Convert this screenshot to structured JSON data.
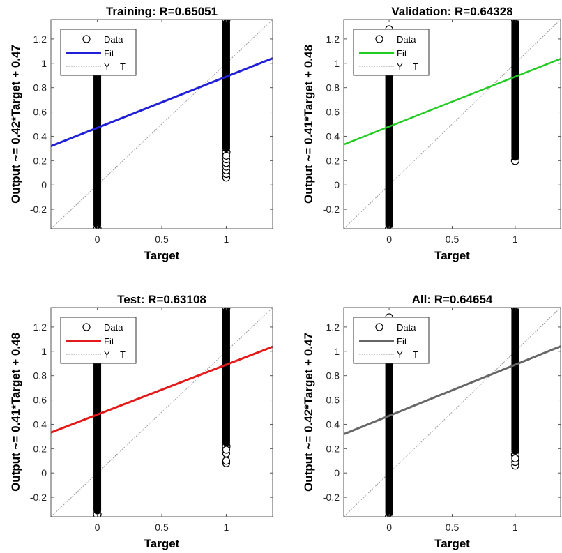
{
  "chart_data": [
    {
      "type": "scatter",
      "title": "Training: R=0.65051",
      "xlabel": "Target",
      "ylabel": "Output ~= 0.42*Target + 0.47",
      "xlim": [
        -0.36,
        1.36
      ],
      "ylim": [
        -0.36,
        1.36
      ],
      "xticks": [
        0,
        0.5,
        1
      ],
      "yticks": [
        -0.2,
        0,
        0.2,
        0.4,
        0.6,
        0.8,
        1,
        1.2
      ],
      "grid": false,
      "legend_position": "top-left",
      "legend": [
        "Data",
        "Fit",
        "Y = T"
      ],
      "fit_color": "#1f1fd6",
      "fit": {
        "slope": 0.42,
        "intercept": 0.47
      },
      "data_columns": [
        {
          "x": 0,
          "y_range": [
            -0.36,
            0.98
          ],
          "outliers": []
        },
        {
          "x": 1,
          "y_range": [
            0.27,
            1.36
          ],
          "outliers": [
            0.06,
            0.09,
            0.12,
            0.15,
            0.18,
            0.21,
            0.24
          ]
        }
      ]
    },
    {
      "type": "scatter",
      "title": "Validation: R=0.64328",
      "xlabel": "Target",
      "ylabel": "Output ~= 0.41*Target + 0.48",
      "xlim": [
        -0.36,
        1.36
      ],
      "ylim": [
        -0.36,
        1.36
      ],
      "xticks": [
        0,
        0.5,
        1
      ],
      "yticks": [
        -0.2,
        0,
        0.2,
        0.4,
        0.6,
        0.8,
        1,
        1.2
      ],
      "grid": false,
      "legend_position": "top-left",
      "legend": [
        "Data",
        "Fit",
        "Y = T"
      ],
      "fit_color": "#22cc22",
      "fit": {
        "slope": 0.41,
        "intercept": 0.48
      },
      "data_columns": [
        {
          "x": 0,
          "y_range": [
            -0.36,
            1.0
          ],
          "outliers": [
            1.28
          ]
        },
        {
          "x": 1,
          "y_range": [
            0.2,
            1.36
          ],
          "outliers": []
        }
      ]
    },
    {
      "type": "scatter",
      "title": "Test: R=0.63108",
      "xlabel": "Target",
      "ylabel": "Output ~= 0.41*Target + 0.48",
      "xlim": [
        -0.36,
        1.36
      ],
      "ylim": [
        -0.36,
        1.36
      ],
      "xticks": [
        0,
        0.5,
        1
      ],
      "yticks": [
        -0.2,
        0,
        0.2,
        0.4,
        0.6,
        0.8,
        1,
        1.2
      ],
      "grid": false,
      "legend_position": "top-left",
      "legend": [
        "Data",
        "Fit",
        "Y = T"
      ],
      "fit_color": "#e31a1a",
      "fit": {
        "slope": 0.41,
        "intercept": 0.48
      },
      "data_columns": [
        {
          "x": 0,
          "y_range": [
            -0.34,
            0.98
          ],
          "outliers": []
        },
        {
          "x": 1,
          "y_range": [
            0.22,
            1.36
          ],
          "outliers": [
            0.08,
            0.1,
            0.16,
            0.19
          ]
        }
      ]
    },
    {
      "type": "scatter",
      "title": "All: R=0.64654",
      "xlabel": "Target",
      "ylabel": "Output ~= 0.42*Target + 0.47",
      "xlim": [
        -0.36,
        1.36
      ],
      "ylim": [
        -0.36,
        1.36
      ],
      "xticks": [
        0,
        0.5,
        1
      ],
      "yticks": [
        -0.2,
        0,
        0.2,
        0.4,
        0.6,
        0.8,
        1,
        1.2
      ],
      "grid": false,
      "legend_position": "top-left",
      "legend": [
        "Data",
        "Fit",
        "Y = T"
      ],
      "fit_color": "#666666",
      "fit": {
        "slope": 0.42,
        "intercept": 0.47
      },
      "data_columns": [
        {
          "x": 0,
          "y_range": [
            -0.36,
            1.0
          ],
          "outliers": [
            1.28
          ]
        },
        {
          "x": 1,
          "y_range": [
            0.15,
            1.36
          ],
          "outliers": [
            0.06,
            0.09,
            0.12
          ]
        }
      ]
    }
  ]
}
